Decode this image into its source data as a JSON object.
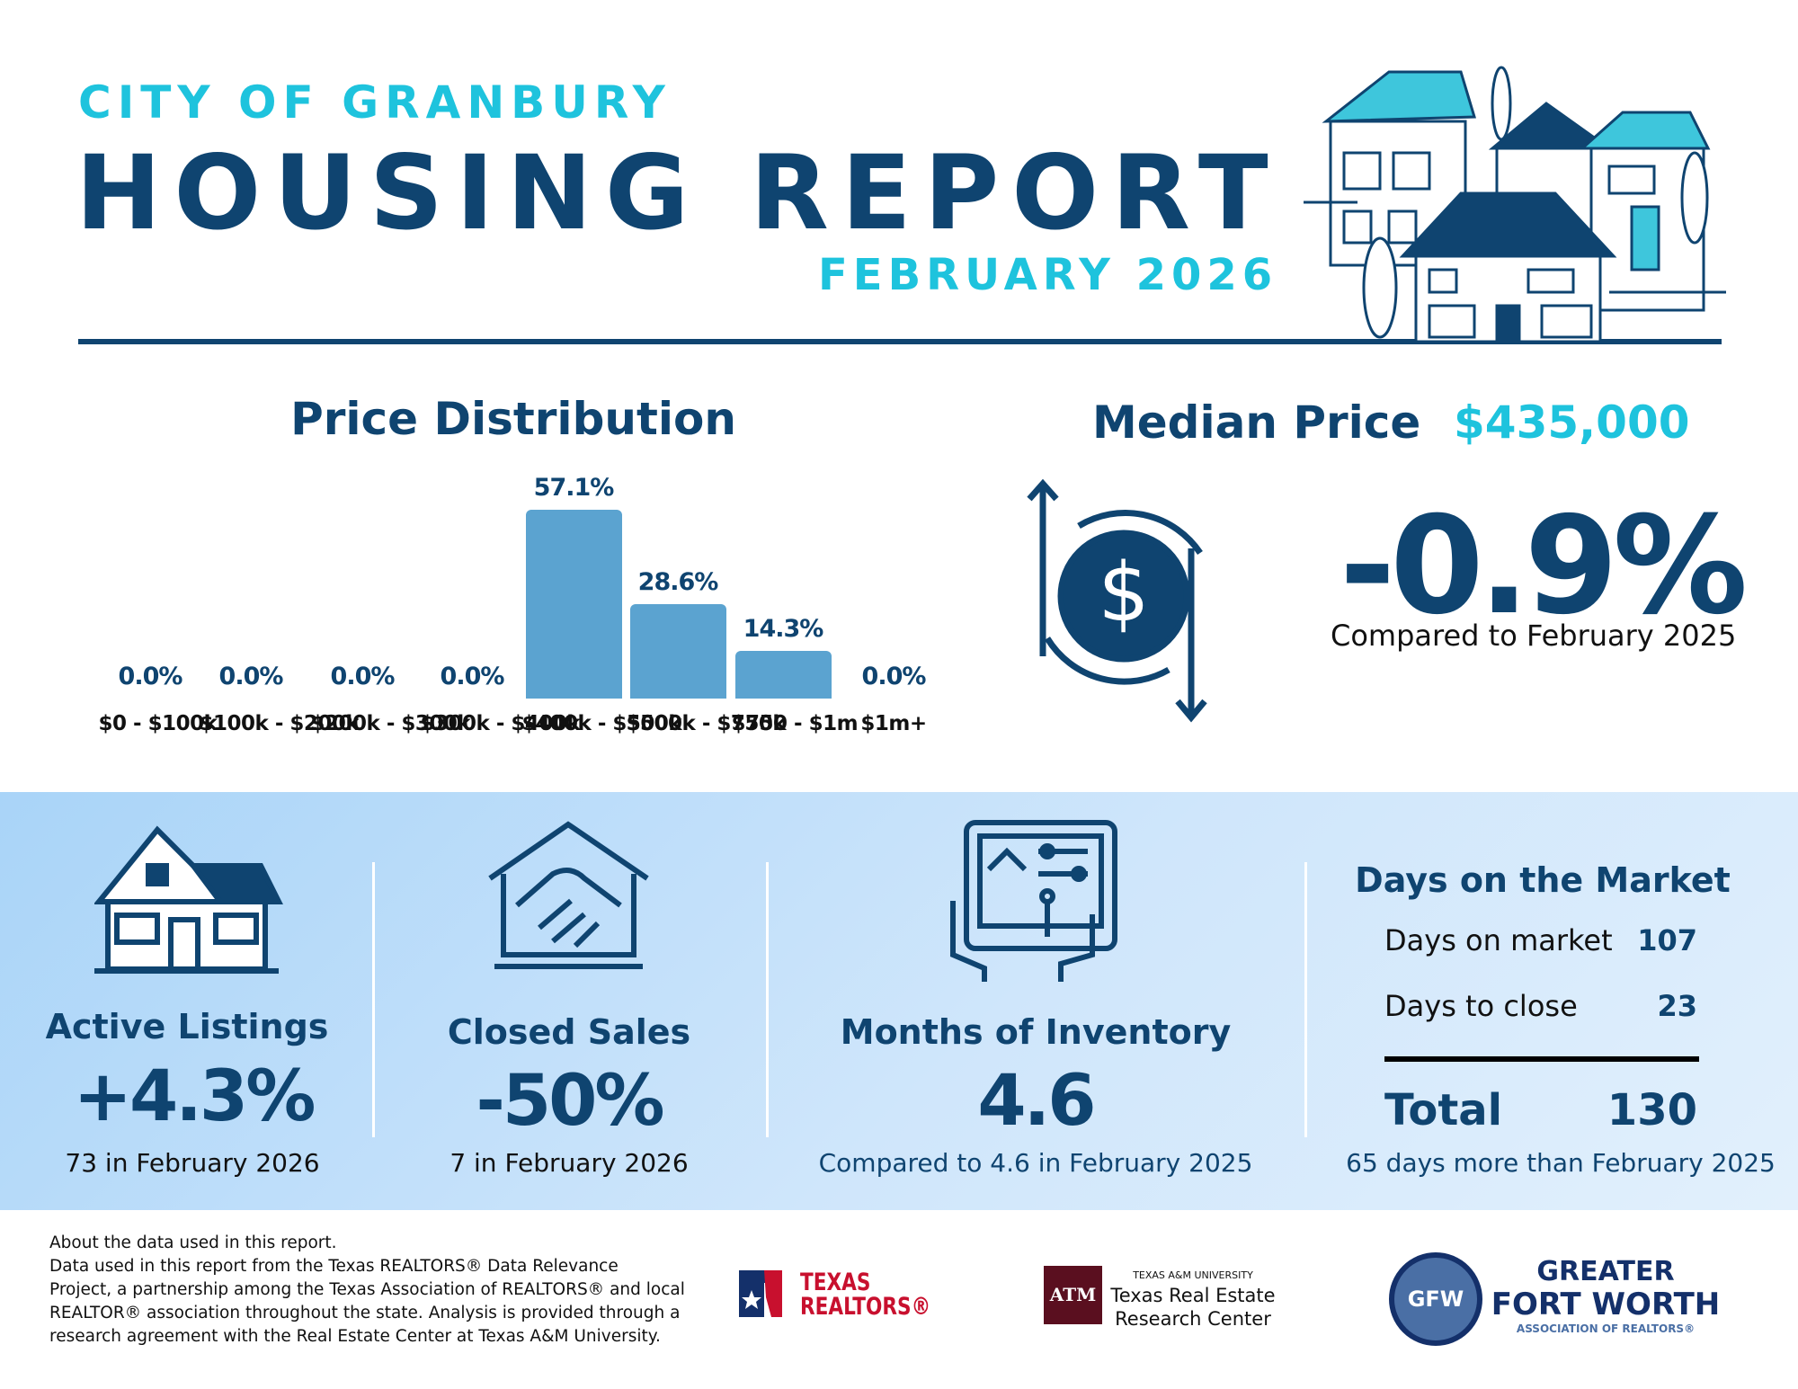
{
  "header": {
    "eyebrow": "CITY OF GRANBURY",
    "title": "HOUSING REPORT",
    "period": "FEBRUARY 2026"
  },
  "chart_data": {
    "type": "bar",
    "title": "Price Distribution",
    "categories": [
      "$0 - $100k",
      "$100k - $200k",
      "$200k - $300k",
      "$300k - $400k",
      "$400k - $500k",
      "$500k - $750k",
      "$750 - $1m",
      "$1m+"
    ],
    "values": [
      0,
      0,
      0,
      0,
      57.1,
      28.6,
      14.3,
      0
    ],
    "value_labels": [
      "0.0%",
      "0.0%",
      "0.0%",
      "0.0%",
      "57.1%",
      "28.6%",
      "14.3%",
      "0.0%"
    ],
    "color": "#5ba3d0"
  },
  "median_price": {
    "label": "Median Price",
    "value": "$435,000",
    "change": "-0.9%",
    "comparison": "Compared to February 2025"
  },
  "active_listings": {
    "title": "Active Listings",
    "value": "+4.3%",
    "note": "73 in February 2026"
  },
  "closed_sales": {
    "title": "Closed Sales",
    "value": "-50%",
    "note": "7 in February 2026"
  },
  "months_of_inventory": {
    "title": "Months of Inventory",
    "value": "4.6",
    "note": "Compared to 4.6 in February 2025"
  },
  "days_on_market": {
    "title": "Days on the Market",
    "rows": [
      {
        "label": "Days on market",
        "value": 107
      },
      {
        "label": "Days to close",
        "value": 23
      }
    ],
    "total": {
      "label": "Total",
      "value": 130
    },
    "note": "65 days more than February 2025"
  },
  "footer": {
    "lines": [
      "About the data used in this report.",
      "Data used in this report from the Texas REALTORS® Data Relevance",
      "Project, a partnership among the Texas Association of REALTORS® and local",
      "REALTOR® association throughout the state. Analysis is provided through a",
      "research agreement with the Real Estate Center at Texas A&M University."
    ],
    "texas_realtors": [
      "TEXAS",
      "REALTORS®"
    ],
    "tamu": {
      "mark": "ATM",
      "university": "TEXAS A&M UNIVERSITY",
      "lines": [
        "Texas Real Estate",
        "Research Center"
      ]
    },
    "gfw": {
      "mark": "GFW",
      "lines": [
        "GREATER",
        "FORT WORTH",
        "ASSOCIATION OF REALTORS®"
      ]
    }
  }
}
